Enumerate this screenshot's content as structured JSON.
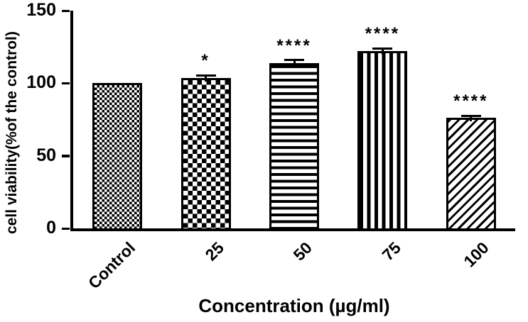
{
  "chart_data": {
    "type": "bar",
    "title": "",
    "xlabel": "Concentration (µg/ml)",
    "ylabel": "cell viability(%of the control)",
    "ylim": [
      0,
      150
    ],
    "yticks": [
      0,
      50,
      100,
      150
    ],
    "categories": [
      "Control",
      "25",
      "50",
      "75",
      "100"
    ],
    "values": [
      100,
      103.5,
      114,
      122,
      76
    ],
    "errors": [
      0,
      2,
      2,
      2,
      1.5
    ],
    "significance": [
      "",
      "*",
      "****",
      "****",
      "****"
    ],
    "patterns": [
      "fine-checkerboard",
      "checkerboard",
      "horizontal-lines",
      "vertical-lines",
      "diagonal-lines"
    ],
    "bar_color": "#000000",
    "background_color": "#ffffff",
    "grid": false,
    "legend": "none"
  }
}
